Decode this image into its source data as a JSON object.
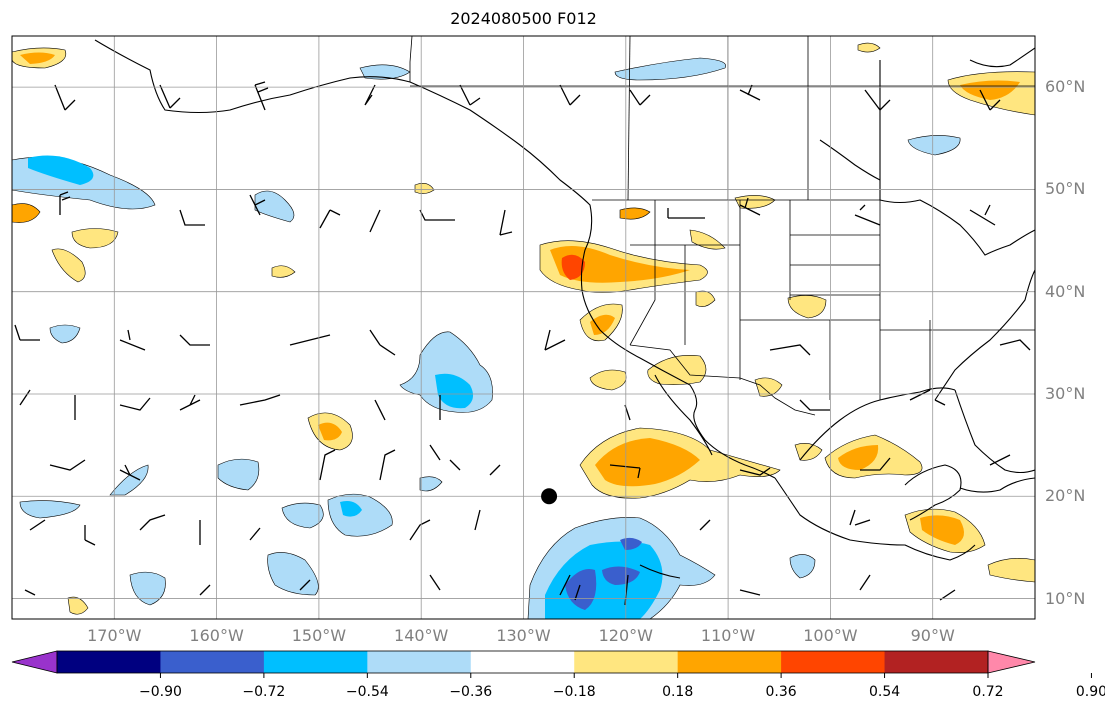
{
  "title": "2024080500 F012",
  "map": {
    "projection": "PlateCarree",
    "lon_range": [
      -180,
      -80
    ],
    "lat_range": [
      8,
      65
    ],
    "lat_ticks": [
      {
        "value": 60,
        "label": "60°N"
      },
      {
        "value": 50,
        "label": "50°N"
      },
      {
        "value": 40,
        "label": "40°N"
      },
      {
        "value": 30,
        "label": "30°N"
      },
      {
        "value": 20,
        "label": "20°N"
      },
      {
        "value": 10,
        "label": "10°N"
      }
    ],
    "lon_ticks": [
      {
        "value": -170,
        "label": "170°W"
      },
      {
        "value": -160,
        "label": "160°W"
      },
      {
        "value": -150,
        "label": "150°W"
      },
      {
        "value": -140,
        "label": "140°W"
      },
      {
        "value": -130,
        "label": "130°W"
      },
      {
        "value": -120,
        "label": "120°W"
      },
      {
        "value": -110,
        "label": "110°W"
      },
      {
        "value": -100,
        "label": "100°W"
      },
      {
        "value": -90,
        "label": "90°W"
      }
    ],
    "gridlines": true,
    "marker": {
      "lon": -127.5,
      "lat": 20,
      "color": "#000000"
    }
  },
  "colorbar": {
    "labels": [
      "−0.90",
      "−0.72",
      "−0.54",
      "−0.36",
      "−0.18",
      "0.18",
      "0.36",
      "0.54",
      "0.72",
      "0.90"
    ],
    "colors": [
      "#9933cc",
      "#000080",
      "#3a5fcd",
      "#00bfff",
      "#aedcf8",
      "#ffffff",
      "#ffe680",
      "#ffa500",
      "#ff4500",
      "#b22222",
      "#ff88aa"
    ]
  }
}
